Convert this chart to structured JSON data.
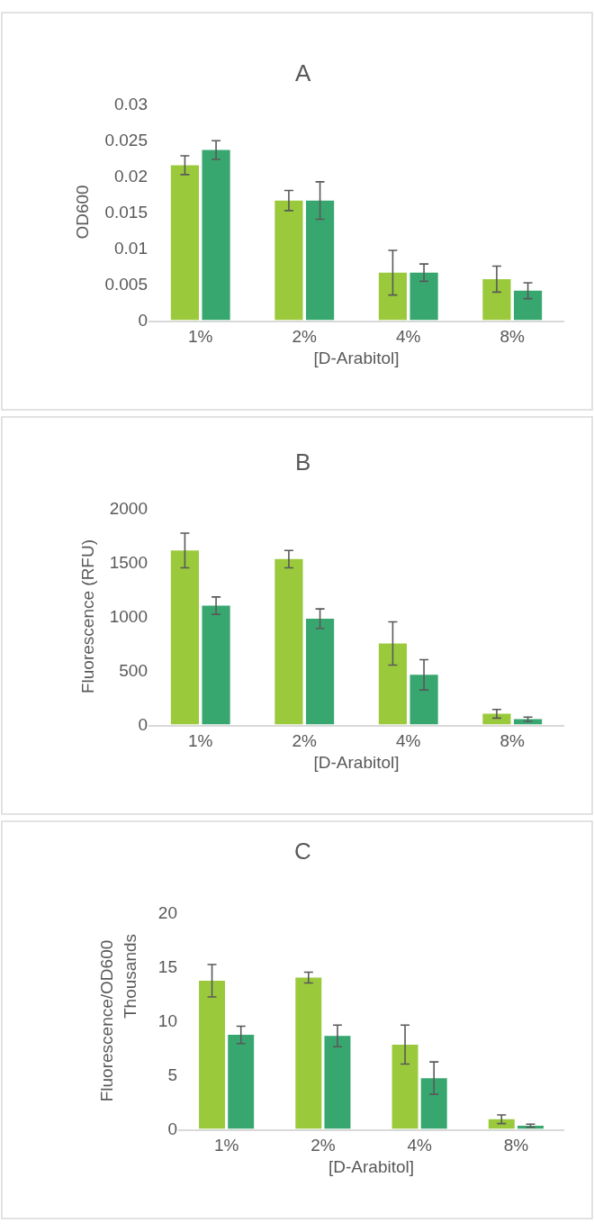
{
  "chart_data": [
    {
      "type": "bar",
      "title": "A",
      "xlabel": "[D-Arabitol]",
      "ylabel": "OD600",
      "categories": [
        "1%",
        "2%",
        "4%",
        "8%"
      ],
      "ylim": [
        0,
        0.03
      ],
      "yticks": [
        0,
        0.005,
        0.01,
        0.015,
        0.02,
        0.025,
        0.03
      ],
      "series": [
        {
          "color": "#9aca3c",
          "values": [
            0.0215,
            0.0166,
            0.0066,
            0.0057
          ],
          "errors": [
            0.0013,
            0.0014,
            0.0031,
            0.0018
          ]
        },
        {
          "color": "#37a76f",
          "values": [
            0.0236,
            0.0166,
            0.0066,
            0.0041
          ],
          "errors": [
            0.0013,
            0.0026,
            0.0012,
            0.0011
          ]
        }
      ]
    },
    {
      "type": "bar",
      "title": "B",
      "xlabel": "[D-Arabitol]",
      "ylabel": "Fluorescence (RFU)",
      "categories": [
        "1%",
        "2%",
        "4%",
        "8%"
      ],
      "ylim": [
        0,
        2000
      ],
      "yticks": [
        0,
        500,
        1000,
        1500,
        2000
      ],
      "series": [
        {
          "color": "#9aca3c",
          "values": [
            1610,
            1530,
            750,
            100
          ],
          "errors": [
            160,
            80,
            200,
            40
          ]
        },
        {
          "color": "#37a76f",
          "values": [
            1100,
            980,
            460,
            50
          ],
          "errors": [
            80,
            90,
            140,
            20
          ]
        }
      ]
    },
    {
      "type": "bar",
      "title": "C",
      "xlabel": "[D-Arabitol]",
      "ylabel": "Fluorescence/OD600",
      "annotations": [
        "Thousands"
      ],
      "categories": [
        "1%",
        "2%",
        "4%",
        "8%"
      ],
      "ylim": [
        0,
        20
      ],
      "yticks": [
        0,
        5,
        10,
        15,
        20
      ],
      "series": [
        {
          "color": "#9aca3c",
          "values": [
            13.7,
            14.0,
            7.8,
            0.9
          ],
          "errors": [
            1.5,
            0.5,
            1.8,
            0.4
          ]
        },
        {
          "color": "#37a76f",
          "values": [
            8.7,
            8.6,
            4.7,
            0.3
          ],
          "errors": [
            0.8,
            1.0,
            1.5,
            0.15
          ]
        }
      ]
    }
  ]
}
